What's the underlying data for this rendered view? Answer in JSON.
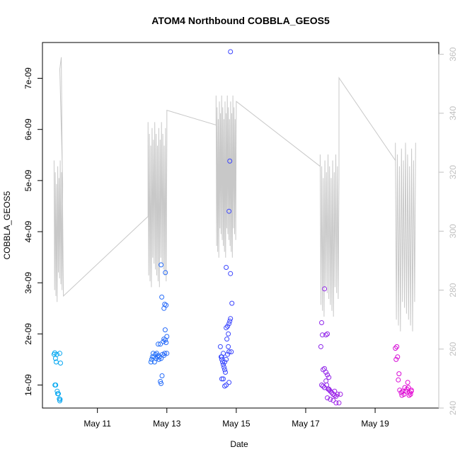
{
  "chart_data": {
    "type": "scatter",
    "title": "ATOM4 Northbound COBBLA_GEOS5",
    "xlabel": "Date",
    "ylabel": "COBBLA_GEOS5",
    "xlim": [
      "2016-05-09T10:00",
      "2016-05-20T20:00"
    ],
    "ylim": [
      5.5e-10,
      7.7e-09
    ],
    "y2lim": [
      240,
      364
    ],
    "x_ticks": [
      {
        "label": "May 11",
        "date": "2016-05-11"
      },
      {
        "label": "May 13",
        "date": "2016-05-13"
      },
      {
        "label": "May 15",
        "date": "2016-05-15"
      },
      {
        "label": "May 17",
        "date": "2016-05-17"
      },
      {
        "label": "May 19",
        "date": "2016-05-19"
      }
    ],
    "y_ticks": [
      {
        "label": "1e-09",
        "value": 1e-09
      },
      {
        "label": "2e-09",
        "value": 2e-09
      },
      {
        "label": "3e-09",
        "value": 3e-09
      },
      {
        "label": "4e-09",
        "value": 4e-09
      },
      {
        "label": "5e-09",
        "value": 5e-09
      },
      {
        "label": "6e-09",
        "value": 6e-09
      },
      {
        "label": "7e-09",
        "value": 7e-09
      }
    ],
    "y2_ticks": [
      {
        "label": "240",
        "value": 240
      },
      {
        "label": "260",
        "value": 260
      },
      {
        "label": "280",
        "value": 280
      },
      {
        "label": "300",
        "value": 300
      },
      {
        "label": "320",
        "value": 320
      },
      {
        "label": "340",
        "value": 340
      },
      {
        "label": "360",
        "value": 360
      }
    ],
    "grid": false,
    "colors": {
      "scatter_start": "#00b0f0",
      "scatter_mid": "#4040ff",
      "scatter_end": "#ff00cc",
      "line": "#c8c8c8"
    },
    "scatter_points": [
      [
        "2016-05-09T18:00",
        1.6e-09
      ],
      [
        "2016-05-09T18:30",
        1.63e-09
      ],
      [
        "2016-05-09T19:00",
        1.52e-09
      ],
      [
        "2016-05-09T19:30",
        1.45e-09
      ],
      [
        "2016-05-09T20:00",
        1.6e-09
      ],
      [
        "2016-05-09T22:00",
        1.62e-09
      ],
      [
        "2016-05-09T22:30",
        1.43e-09
      ],
      [
        "2016-05-09T18:40",
        1e-09
      ],
      [
        "2016-05-09T19:10",
        1e-09
      ],
      [
        "2016-05-09T20:10",
        8.8e-10
      ],
      [
        "2016-05-09T20:30",
        8.3e-10
      ],
      [
        "2016-05-09T21:00",
        8.3e-10
      ],
      [
        "2016-05-09T21:40",
        7.3e-10
      ],
      [
        "2016-05-09T22:00",
        6.9e-10
      ],
      [
        "2016-05-09T22:10",
        7.2e-10
      ],
      [
        "2016-05-12T13:00",
        1.45e-09
      ],
      [
        "2016-05-12T13:30",
        1.5e-09
      ],
      [
        "2016-05-12T14:00",
        1.55e-09
      ],
      [
        "2016-05-12T14:30",
        1.62e-09
      ],
      [
        "2016-05-12T15:00",
        1.55e-09
      ],
      [
        "2016-05-12T15:30",
        1.45e-09
      ],
      [
        "2016-05-12T16:00",
        1.6e-09
      ],
      [
        "2016-05-12T16:30",
        1.52e-09
      ],
      [
        "2016-05-12T17:00",
        1.62e-09
      ],
      [
        "2016-05-12T17:30",
        1.55e-09
      ],
      [
        "2016-05-12T18:00",
        1.58e-09
      ],
      [
        "2016-05-12T18:30",
        1.5e-09
      ],
      [
        "2016-05-12T19:00",
        1.55e-09
      ],
      [
        "2016-05-12T20:00",
        1.52e-09
      ],
      [
        "2016-05-12T21:00",
        1.6e-09
      ],
      [
        "2016-05-12T22:00",
        1.58e-09
      ],
      [
        "2016-05-12T22:30",
        1.62e-09
      ],
      [
        "2016-05-12T18:00",
        1.8e-09
      ],
      [
        "2016-05-12T19:30",
        1.8e-09
      ],
      [
        "2016-05-12T21:30",
        1.85e-09
      ],
      [
        "2016-05-12T23:00",
        1.88e-09
      ],
      [
        "2016-05-12T22:00",
        1.9e-09
      ],
      [
        "2016-05-13T00:00",
        1.95e-09
      ],
      [
        "2016-05-12T23:30",
        1.83e-09
      ],
      [
        "2016-05-13T00:00",
        1.62e-09
      ],
      [
        "2016-05-12T20:00",
        3.35e-09
      ],
      [
        "2016-05-12T20:30",
        2.72e-09
      ],
      [
        "2016-05-12T22:30",
        2.58e-09
      ],
      [
        "2016-05-12T22:00",
        2.5e-09
      ],
      [
        "2016-05-12T23:30",
        2.56e-09
      ],
      [
        "2016-05-12T23:00",
        3.2e-09
      ],
      [
        "2016-05-12T22:50",
        2.08e-09
      ],
      [
        "2016-05-12T19:30",
        1.07e-09
      ],
      [
        "2016-05-12T20:00",
        1.03e-09
      ],
      [
        "2016-05-12T20:40",
        1.18e-09
      ],
      [
        "2016-05-14T13:00",
        1.75e-09
      ],
      [
        "2016-05-14T13:30",
        1.55e-09
      ],
      [
        "2016-05-14T14:00",
        1.5e-09
      ],
      [
        "2016-05-14T14:30",
        1.45e-09
      ],
      [
        "2016-05-14T15:00",
        1.4e-09
      ],
      [
        "2016-05-14T15:30",
        1.35e-09
      ],
      [
        "2016-05-14T16:00",
        1.3e-09
      ],
      [
        "2016-05-14T16:30",
        1.25e-09
      ],
      [
        "2016-05-14T14:00",
        1.55e-09
      ],
      [
        "2016-05-14T15:00",
        1.62e-09
      ],
      [
        "2016-05-14T16:00",
        1.45e-09
      ],
      [
        "2016-05-14T17:00",
        1.5e-09
      ],
      [
        "2016-05-14T18:00",
        1.6e-09
      ],
      [
        "2016-05-14T19:00",
        1.65e-09
      ],
      [
        "2016-05-14T17:30",
        1.9e-09
      ],
      [
        "2016-05-14T18:30",
        2e-09
      ],
      [
        "2016-05-14T17:00",
        2.12e-09
      ],
      [
        "2016-05-14T18:00",
        2.15e-09
      ],
      [
        "2016-05-14T19:00",
        2.2e-09
      ],
      [
        "2016-05-14T19:30",
        2.25e-09
      ],
      [
        "2016-05-14T20:00",
        2.3e-09
      ],
      [
        "2016-05-14T20:30",
        1.65e-09
      ],
      [
        "2016-05-14T18:30",
        1.75e-09
      ],
      [
        "2016-05-14T14:00",
        1.12e-09
      ],
      [
        "2016-05-14T15:00",
        1.12e-09
      ],
      [
        "2016-05-14T16:00",
        9.8e-10
      ],
      [
        "2016-05-14T17:00",
        1e-09
      ],
      [
        "2016-05-14T19:00",
        1.05e-09
      ],
      [
        "2016-05-14T17:00",
        3.3e-09
      ],
      [
        "2016-05-14T20:00",
        3.18e-09
      ],
      [
        "2016-05-14T21:00",
        2.6e-09
      ],
      [
        "2016-05-14T19:00",
        4.4e-09
      ],
      [
        "2016-05-14T19:30",
        5.38e-09
      ],
      [
        "2016-05-14T20:00",
        7.52e-09
      ],
      [
        "2016-05-17T11:00",
        2.22e-09
      ],
      [
        "2016-05-17T11:30",
        1.98e-09
      ],
      [
        "2016-05-17T14:00",
        1.98e-09
      ],
      [
        "2016-05-17T15:00",
        2e-09
      ],
      [
        "2016-05-17T10:30",
        1.75e-09
      ],
      [
        "2016-05-17T13:00",
        2.88e-09
      ],
      [
        "2016-05-17T12:00",
        1.3e-09
      ],
      [
        "2016-05-17T13:00",
        1.32e-09
      ],
      [
        "2016-05-17T14:00",
        1.25e-09
      ],
      [
        "2016-05-17T15:00",
        1.2e-09
      ],
      [
        "2016-05-17T16:00",
        1.15e-09
      ],
      [
        "2016-05-17T14:00",
        1.08e-09
      ],
      [
        "2016-05-17T11:00",
        1e-09
      ],
      [
        "2016-05-17T12:00",
        9.8e-10
      ],
      [
        "2016-05-17T13:00",
        9.5e-10
      ],
      [
        "2016-05-17T14:30",
        1e-09
      ],
      [
        "2016-05-17T15:30",
        9.2e-10
      ],
      [
        "2016-05-17T16:30",
        9e-10
      ],
      [
        "2016-05-17T17:00",
        8.8e-10
      ],
      [
        "2016-05-17T18:00",
        8.5e-10
      ],
      [
        "2016-05-17T19:00",
        8.2e-10
      ],
      [
        "2016-05-17T20:00",
        8e-10
      ],
      [
        "2016-05-17T21:00",
        7.8e-10
      ],
      [
        "2016-05-17T22:00",
        8.2e-10
      ],
      [
        "2016-05-17T15:00",
        7.5e-10
      ],
      [
        "2016-05-17T17:00",
        7.2e-10
      ],
      [
        "2016-05-17T19:00",
        7e-10
      ],
      [
        "2016-05-17T21:00",
        6.5e-10
      ],
      [
        "2016-05-17T23:00",
        6.5e-10
      ],
      [
        "2016-05-18T00:00",
        8.2e-10
      ],
      [
        "2016-05-17T16:00",
        9.2e-10
      ],
      [
        "2016-05-17T20:00",
        8.8e-10
      ],
      [
        "2016-05-19T14:00",
        1.72e-09
      ],
      [
        "2016-05-19T15:00",
        1.75e-09
      ],
      [
        "2016-05-19T14:30",
        1.5e-09
      ],
      [
        "2016-05-19T15:30",
        1.55e-09
      ],
      [
        "2016-05-19T16:30",
        1.22e-09
      ],
      [
        "2016-05-19T16:00",
        1.1e-09
      ],
      [
        "2016-05-19T17:00",
        9e-10
      ],
      [
        "2016-05-19T18:00",
        8.5e-10
      ],
      [
        "2016-05-19T19:00",
        8.8e-10
      ],
      [
        "2016-05-19T20:00",
        8.2e-10
      ],
      [
        "2016-05-19T21:00",
        8.8e-10
      ],
      [
        "2016-05-19T22:00",
        9.2e-10
      ],
      [
        "2016-05-19T23:00",
        9.5e-10
      ],
      [
        "2016-05-20T00:00",
        8.5e-10
      ],
      [
        "2016-05-20T01:00",
        8.8e-10
      ],
      [
        "2016-05-19T20:30",
        9.5e-10
      ],
      [
        "2016-05-19T22:30",
        1.05e-09
      ],
      [
        "2016-05-20T01:00",
        9e-10
      ],
      [
        "2016-05-19T18:30",
        8e-10
      ],
      [
        "2016-05-19T23:30",
        8e-10
      ],
      [
        "2016-05-20T00:30",
        8.2e-10
      ]
    ],
    "line_series": {
      "axis": "right",
      "segments": [
        {
          "t0": "2016-05-09T18:00",
          "t1": "2016-05-10T00:00",
          "lo": 275,
          "hi": 324,
          "n": 7,
          "pre": [
            [
              "2016-05-09T22:00",
              355
            ],
            [
              "2016-05-09T23:00",
              359
            ],
            [
              "2016-05-10T00:30",
              278
            ]
          ]
        },
        {
          "t0": "2016-05-12T11:00",
          "t1": "2016-05-13T00:00",
          "lo": 280,
          "hi": 337,
          "n": 14
        },
        {
          "t0": "2016-05-14T10:00",
          "t1": "2016-05-15T00:00",
          "lo": 290,
          "hi": 346,
          "n": 18
        },
        {
          "t0": "2016-05-17T10:00",
          "t1": "2016-05-17T23:00",
          "lo": 270,
          "hi": 326,
          "n": 12
        },
        {
          "t0": "2016-05-19T14:00",
          "t1": "2016-05-20T04:00",
          "lo": 265,
          "hi": 330,
          "n": 10
        }
      ],
      "connectors": [
        [
          "2016-05-10T00:30",
          278
        ],
        [
          "2016-05-12T11:00",
          305
        ],
        [
          "2016-05-13T00:00",
          341
        ],
        [
          "2016-05-14T10:00",
          336
        ],
        [
          "2016-05-15T00:00",
          344
        ],
        [
          "2016-05-17T10:00",
          322
        ],
        [
          "2016-05-17T23:00",
          352
        ],
        [
          "2016-05-19T14:00",
          324
        ]
      ]
    }
  }
}
